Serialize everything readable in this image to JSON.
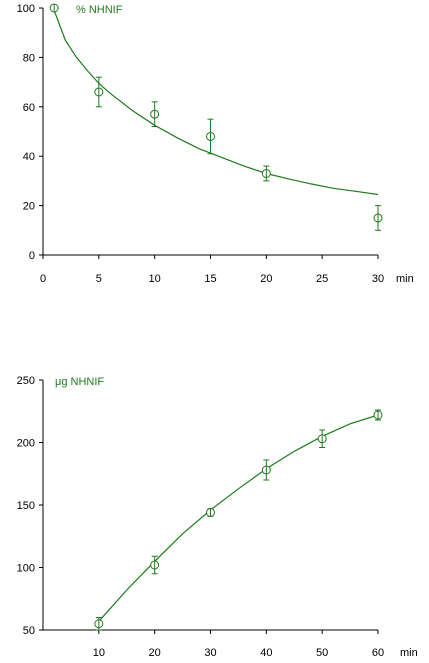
{
  "chart_data": [
    {
      "type": "scatter",
      "title": "",
      "series_label": "% NHNIF",
      "xlabel": "min",
      "ylabel": "",
      "xlim": [
        0,
        30
      ],
      "ylim": [
        0,
        100
      ],
      "x_ticks": [
        0,
        5,
        10,
        15,
        20,
        25,
        30
      ],
      "y_ticks": [
        0,
        20,
        40,
        60,
        80,
        100
      ],
      "x_tick_labels": [
        "0",
        "5",
        "10",
        "15",
        "20",
        "25",
        "30"
      ],
      "y_tick_labels": [
        "0",
        "20",
        "40",
        "60",
        "80",
        "100"
      ],
      "points": [
        {
          "x": 1,
          "y": 100,
          "err": 0
        },
        {
          "x": 5,
          "y": 66,
          "err": 6
        },
        {
          "x": 10,
          "y": 57,
          "err": 5
        },
        {
          "x": 15,
          "y": 48,
          "err": 7
        },
        {
          "x": 20,
          "y": 33,
          "err": 3
        },
        {
          "x": 30,
          "y": 15,
          "err": 5
        }
      ],
      "fit_curve": {
        "x": [
          1,
          2,
          3,
          4,
          5,
          6,
          8,
          10,
          12,
          14,
          16,
          18,
          20,
          22,
          24,
          26,
          28,
          30
        ],
        "y": [
          99,
          87,
          80,
          74.5,
          69.5,
          65.5,
          58.5,
          52.5,
          47.5,
          43,
          39.5,
          36,
          33,
          30.8,
          28.8,
          27,
          25.8,
          24.5
        ]
      },
      "grid": false,
      "color": "#1e7a1e"
    },
    {
      "type": "scatter",
      "title": "",
      "series_label": "μg NHNIF",
      "xlabel": "min",
      "ylabel": "",
      "xlim": [
        0,
        60
      ],
      "ylim": [
        50,
        250
      ],
      "x_ticks": [
        10,
        20,
        30,
        40,
        50,
        60
      ],
      "y_ticks": [
        50,
        100,
        150,
        200,
        250
      ],
      "x_tick_labels": [
        "10",
        "20",
        "30",
        "40",
        "50",
        "60"
      ],
      "y_tick_labels": [
        "50",
        "100",
        "150",
        "200",
        "250"
      ],
      "points": [
        {
          "x": 10,
          "y": 55,
          "err": 5
        },
        {
          "x": 20,
          "y": 102,
          "err": 7
        },
        {
          "x": 30,
          "y": 144,
          "err": 3
        },
        {
          "x": 40,
          "y": 178,
          "err": 8
        },
        {
          "x": 50,
          "y": 203,
          "err": 7
        },
        {
          "x": 60,
          "y": 222,
          "err": 4
        }
      ],
      "fit_curve": {
        "x": [
          10,
          15,
          20,
          25,
          30,
          35,
          40,
          45,
          50,
          55,
          60
        ],
        "y": [
          57,
          82,
          105,
          127,
          146,
          163,
          179,
          193,
          205,
          215,
          222
        ]
      },
      "grid": false,
      "color": "#1e7a1e"
    }
  ]
}
